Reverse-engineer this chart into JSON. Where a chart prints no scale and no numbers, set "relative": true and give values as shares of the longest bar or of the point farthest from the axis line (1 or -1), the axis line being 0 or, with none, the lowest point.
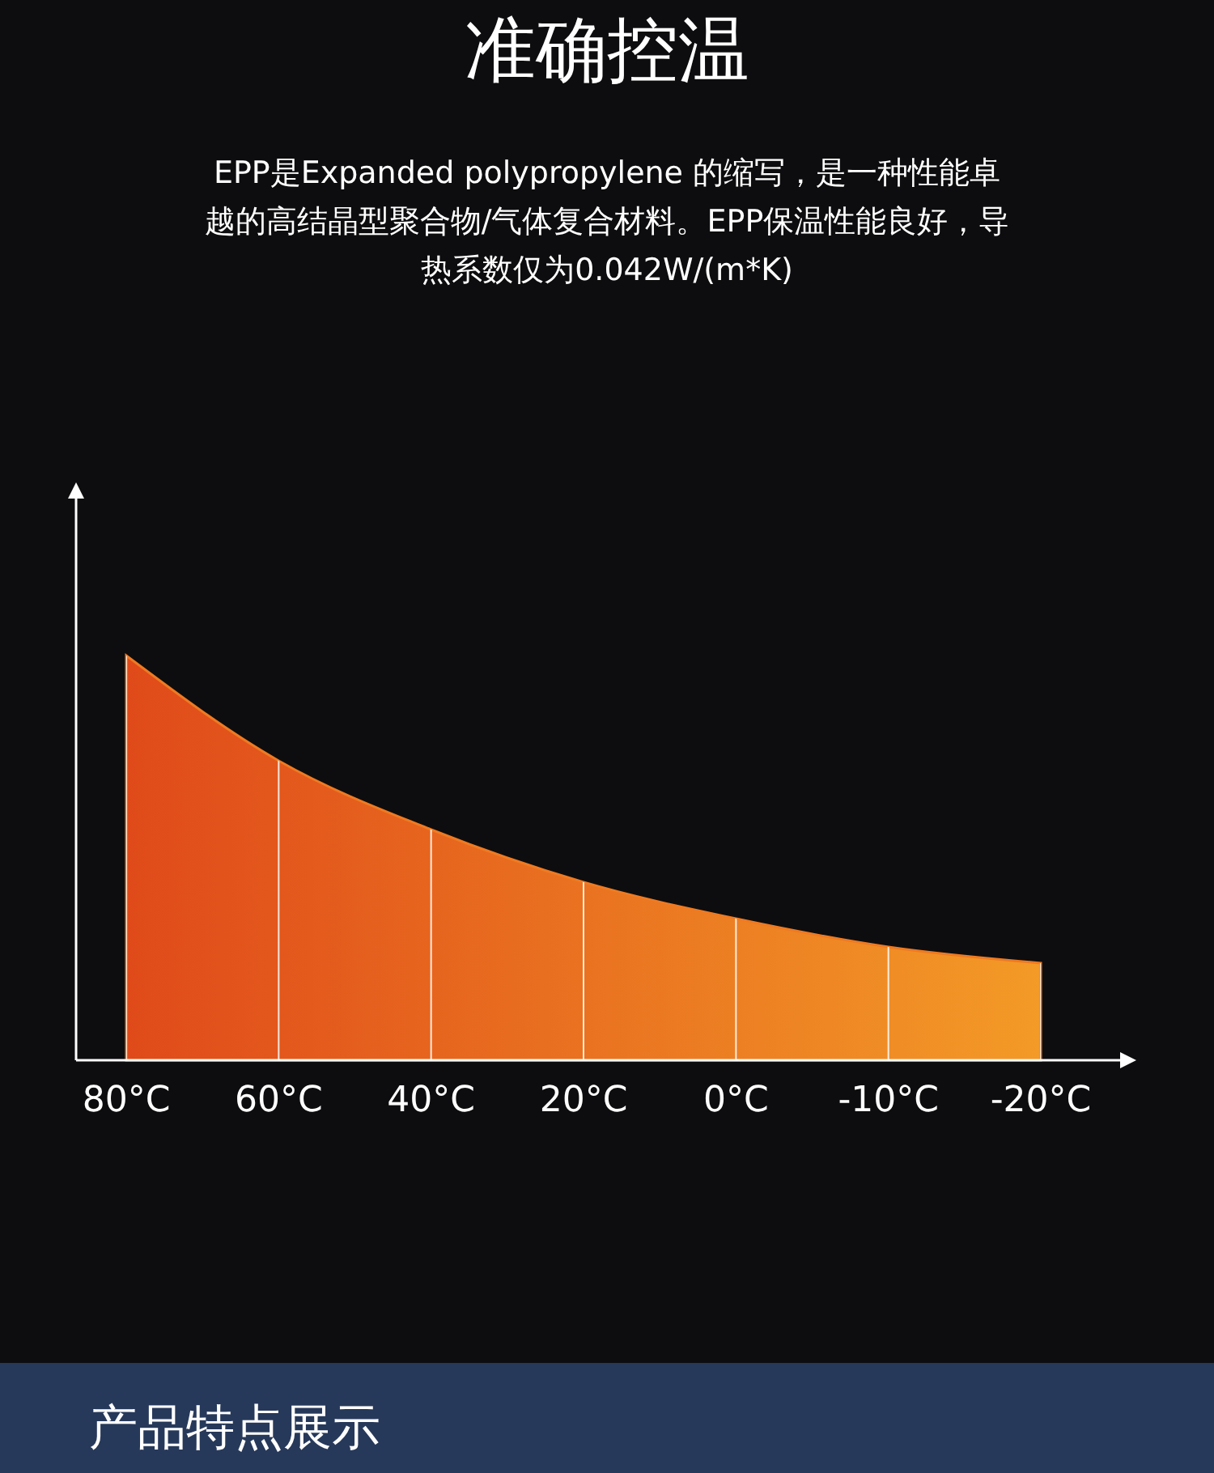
{
  "chart_data": {
    "type": "area",
    "title": "准确控温",
    "subtitle": "EPP是Expanded polypropylene 的缩写，是一种性能卓越的高结晶型聚合物/气体复合材料。EPP保温性能良好，导热系数仅为0.042W/(m*K)",
    "categories": [
      "80°C",
      "60°C",
      "40°C",
      "20°C",
      "0°C",
      "-10°C",
      "-20°C"
    ],
    "series": [
      {
        "color": "#ee7a22",
        "values": [
          1,
          0.74,
          0.57,
          0.44,
          0.35,
          0.28,
          0.24
        ]
      }
    ],
    "relative": true,
    "grid": "x",
    "annotations": [
      "产品特点展示"
    ]
  }
}
